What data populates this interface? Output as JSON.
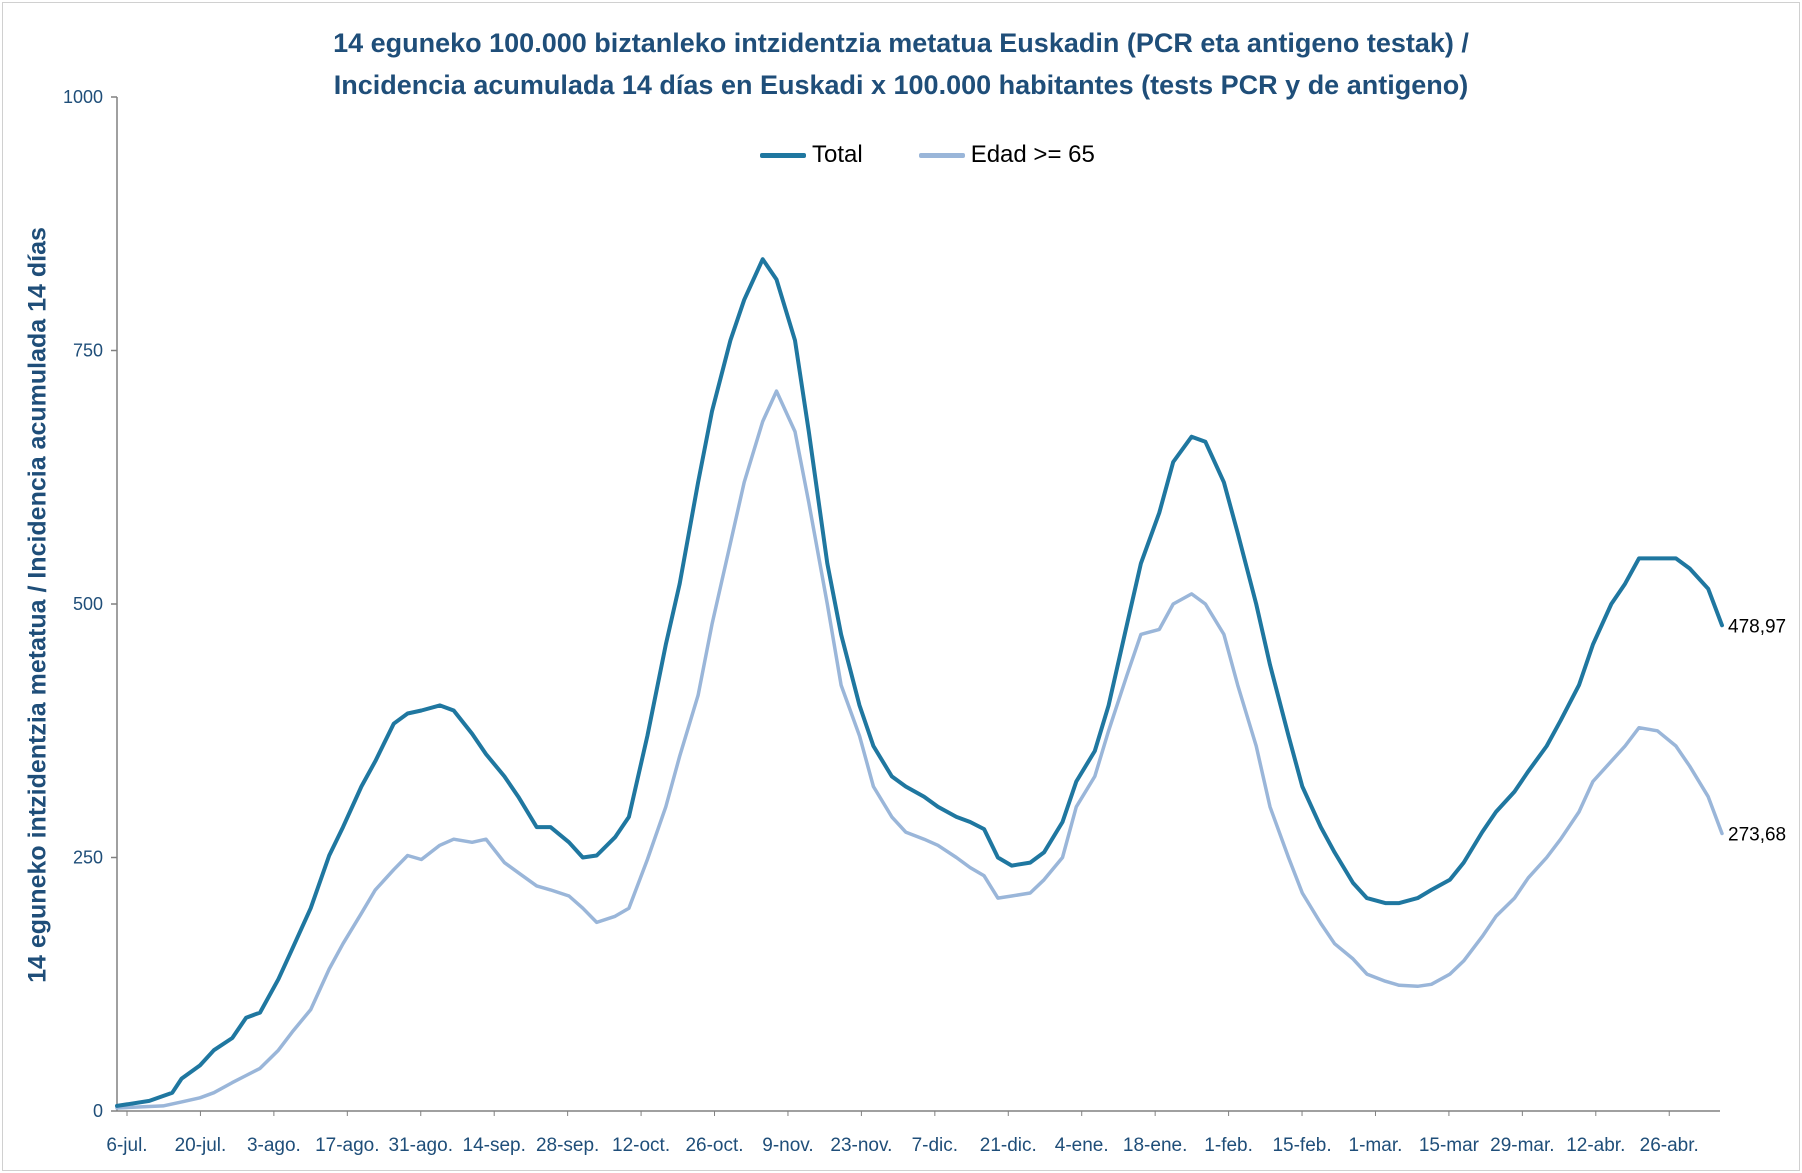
{
  "chart_data": {
    "type": "line",
    "title_line1": "14 eguneko 100.000 biztanleko intzidentzia metatua Euskadin (PCR eta antigeno testak) /",
    "title_line2": "Incidencia acumulada 14 días en Euskadi x 100.000 habitantes (tests PCR y de antigeno)",
    "ylabel": "14 eguneko intzidentzia metatua / Incidencia acumulada 14 días",
    "ylim": [
      0,
      1000
    ],
    "yticks": [
      "0",
      "250",
      "500",
      "750",
      "1000"
    ],
    "xtick_labels": [
      "6-jul.",
      "20-jul.",
      "3-ago.",
      "17-ago.",
      "31-ago.",
      "14-sep.",
      "28-sep.",
      "12-oct.",
      "26-oct.",
      "9-nov.",
      "23-nov.",
      "7-dic.",
      "21-dic.",
      "4-ene.",
      "18-ene.",
      "1-feb.",
      "15-feb.",
      "1-mar.",
      "15-mar",
      "29-mar.",
      "12-abr.",
      "26-abr."
    ],
    "series": [
      {
        "name": "Total",
        "color": "#1f77a0",
        "end_label": "478,97",
        "points": [
          [
            0,
            5
          ],
          [
            7,
            10
          ],
          [
            12,
            18
          ],
          [
            14,
            32
          ],
          [
            18,
            45
          ],
          [
            21,
            60
          ],
          [
            25,
            72
          ],
          [
            28,
            92
          ],
          [
            31,
            97
          ],
          [
            35,
            130
          ],
          [
            38,
            160
          ],
          [
            42,
            200
          ],
          [
            46,
            252
          ],
          [
            49,
            280
          ],
          [
            53,
            320
          ],
          [
            56,
            345
          ],
          [
            60,
            382
          ],
          [
            63,
            392
          ],
          [
            66,
            395
          ],
          [
            70,
            400
          ],
          [
            73,
            395
          ],
          [
            77,
            372
          ],
          [
            80,
            352
          ],
          [
            84,
            330
          ],
          [
            87,
            310
          ],
          [
            91,
            280
          ],
          [
            94,
            280
          ],
          [
            98,
            265
          ],
          [
            101,
            250
          ],
          [
            104,
            252
          ],
          [
            108,
            270
          ],
          [
            111,
            290
          ],
          [
            115,
            370
          ],
          [
            119,
            460
          ],
          [
            122,
            520
          ],
          [
            126,
            620
          ],
          [
            129,
            690
          ],
          [
            133,
            760
          ],
          [
            136,
            800
          ],
          [
            140,
            840
          ],
          [
            143,
            820
          ],
          [
            147,
            760
          ],
          [
            150,
            670
          ],
          [
            154,
            540
          ],
          [
            157,
            470
          ],
          [
            161,
            400
          ],
          [
            164,
            360
          ],
          [
            168,
            330
          ],
          [
            171,
            320
          ],
          [
            175,
            310
          ],
          [
            178,
            300
          ],
          [
            182,
            290
          ],
          [
            185,
            285
          ],
          [
            188,
            278
          ],
          [
            191,
            250
          ],
          [
            194,
            242
          ],
          [
            198,
            245
          ],
          [
            201,
            255
          ],
          [
            205,
            285
          ],
          [
            208,
            325
          ],
          [
            212,
            355
          ],
          [
            215,
            400
          ],
          [
            219,
            480
          ],
          [
            222,
            540
          ],
          [
            226,
            590
          ],
          [
            229,
            640
          ],
          [
            233,
            665
          ],
          [
            236,
            660
          ],
          [
            240,
            620
          ],
          [
            243,
            570
          ],
          [
            247,
            500
          ],
          [
            250,
            440
          ],
          [
            254,
            370
          ],
          [
            257,
            320
          ],
          [
            261,
            280
          ],
          [
            264,
            255
          ],
          [
            268,
            225
          ],
          [
            271,
            210
          ],
          [
            275,
            205
          ],
          [
            278,
            205
          ],
          [
            282,
            210
          ],
          [
            285,
            218
          ],
          [
            289,
            228
          ],
          [
            292,
            245
          ],
          [
            296,
            275
          ],
          [
            299,
            295
          ],
          [
            303,
            315
          ],
          [
            306,
            335
          ],
          [
            310,
            360
          ],
          [
            313,
            385
          ],
          [
            317,
            420
          ],
          [
            320,
            460
          ],
          [
            324,
            500
          ],
          [
            327,
            520
          ],
          [
            330,
            545
          ],
          [
            334,
            545
          ],
          [
            338,
            545
          ],
          [
            341,
            535
          ],
          [
            345,
            515
          ],
          [
            348,
            478.97
          ]
        ]
      },
      {
        "name": "Edad >= 65",
        "color": "#9ab6d9",
        "end_label": "273,68",
        "points": [
          [
            0,
            3
          ],
          [
            10,
            5
          ],
          [
            14,
            9
          ],
          [
            18,
            13
          ],
          [
            21,
            18
          ],
          [
            25,
            28
          ],
          [
            28,
            35
          ],
          [
            31,
            42
          ],
          [
            35,
            60
          ],
          [
            38,
            78
          ],
          [
            42,
            100
          ],
          [
            46,
            140
          ],
          [
            49,
            165
          ],
          [
            53,
            195
          ],
          [
            56,
            218
          ],
          [
            60,
            238
          ],
          [
            63,
            252
          ],
          [
            66,
            248
          ],
          [
            70,
            262
          ],
          [
            73,
            268
          ],
          [
            77,
            265
          ],
          [
            80,
            268
          ],
          [
            84,
            245
          ],
          [
            87,
            235
          ],
          [
            91,
            222
          ],
          [
            94,
            218
          ],
          [
            98,
            212
          ],
          [
            101,
            200
          ],
          [
            104,
            186
          ],
          [
            108,
            192
          ],
          [
            111,
            200
          ],
          [
            115,
            248
          ],
          [
            119,
            300
          ],
          [
            122,
            350
          ],
          [
            126,
            410
          ],
          [
            129,
            480
          ],
          [
            133,
            560
          ],
          [
            136,
            620
          ],
          [
            140,
            680
          ],
          [
            143,
            710
          ],
          [
            147,
            670
          ],
          [
            150,
            600
          ],
          [
            154,
            500
          ],
          [
            157,
            420
          ],
          [
            161,
            370
          ],
          [
            164,
            320
          ],
          [
            168,
            290
          ],
          [
            171,
            275
          ],
          [
            175,
            268
          ],
          [
            178,
            262
          ],
          [
            182,
            250
          ],
          [
            185,
            240
          ],
          [
            188,
            232
          ],
          [
            191,
            210
          ],
          [
            194,
            212
          ],
          [
            198,
            215
          ],
          [
            201,
            228
          ],
          [
            205,
            250
          ],
          [
            208,
            300
          ],
          [
            212,
            330
          ],
          [
            215,
            375
          ],
          [
            219,
            430
          ],
          [
            222,
            470
          ],
          [
            226,
            475
          ],
          [
            229,
            500
          ],
          [
            233,
            510
          ],
          [
            236,
            500
          ],
          [
            240,
            470
          ],
          [
            243,
            420
          ],
          [
            247,
            360
          ],
          [
            250,
            300
          ],
          [
            254,
            250
          ],
          [
            257,
            215
          ],
          [
            261,
            185
          ],
          [
            264,
            165
          ],
          [
            268,
            150
          ],
          [
            271,
            135
          ],
          [
            275,
            128
          ],
          [
            278,
            124
          ],
          [
            282,
            123
          ],
          [
            285,
            125
          ],
          [
            289,
            135
          ],
          [
            292,
            148
          ],
          [
            296,
            172
          ],
          [
            299,
            192
          ],
          [
            303,
            210
          ],
          [
            306,
            230
          ],
          [
            310,
            250
          ],
          [
            313,
            268
          ],
          [
            317,
            295
          ],
          [
            320,
            325
          ],
          [
            324,
            345
          ],
          [
            327,
            360
          ],
          [
            330,
            378
          ],
          [
            334,
            375
          ],
          [
            338,
            360
          ],
          [
            341,
            340
          ],
          [
            345,
            310
          ],
          [
            348,
            273.68
          ]
        ]
      }
    ],
    "legend_position": "top-center",
    "grid": false
  }
}
